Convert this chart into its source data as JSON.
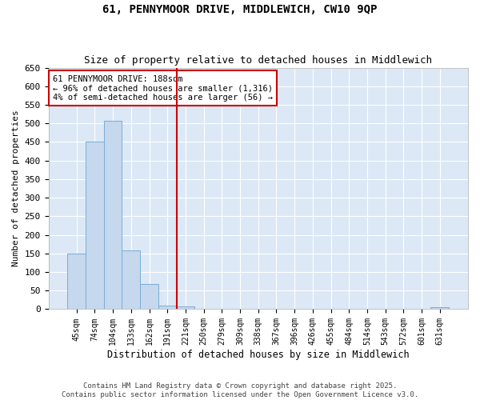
{
  "title1": "61, PENNYMOOR DRIVE, MIDDLEWICH, CW10 9QP",
  "title2": "Size of property relative to detached houses in Middlewich",
  "xlabel": "Distribution of detached houses by size in Middlewich",
  "ylabel": "Number of detached properties",
  "bar_labels": [
    "45sqm",
    "74sqm",
    "104sqm",
    "133sqm",
    "162sqm",
    "191sqm",
    "221sqm",
    "250sqm",
    "279sqm",
    "309sqm",
    "338sqm",
    "367sqm",
    "396sqm",
    "426sqm",
    "455sqm",
    "484sqm",
    "514sqm",
    "543sqm",
    "572sqm",
    "601sqm",
    "631sqm"
  ],
  "bar_values": [
    150,
    450,
    508,
    158,
    68,
    10,
    8,
    0,
    0,
    0,
    0,
    0,
    0,
    0,
    0,
    0,
    0,
    0,
    0,
    0,
    5
  ],
  "bar_color": "#c5d8ee",
  "bar_edgecolor": "#7aadd4",
  "property_line_x": 5.5,
  "annotation_text": "61 PENNYMOOR DRIVE: 188sqm\n← 96% of detached houses are smaller (1,316)\n4% of semi-detached houses are larger (56) →",
  "annotation_box_facecolor": "#ffffff",
  "annotation_box_edgecolor": "#cc0000",
  "vline_color": "#cc0000",
  "ylim": [
    0,
    650
  ],
  "yticks": [
    0,
    50,
    100,
    150,
    200,
    250,
    300,
    350,
    400,
    450,
    500,
    550,
    600,
    650
  ],
  "bg_color": "#dce8f5",
  "fig_bg_color": "#ffffff",
  "footer1": "Contains HM Land Registry data © Crown copyright and database right 2025.",
  "footer2": "Contains public sector information licensed under the Open Government Licence v3.0."
}
